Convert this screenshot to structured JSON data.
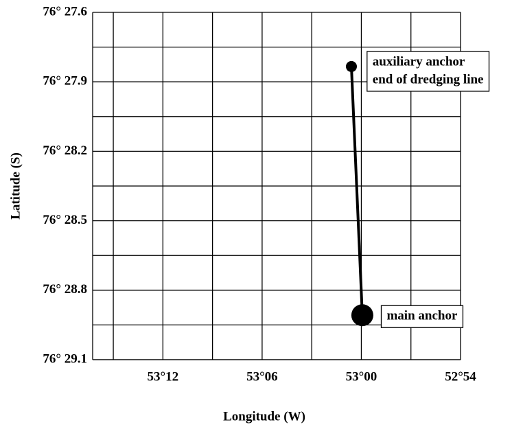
{
  "chart_data": {
    "type": "line",
    "xlabel": "Longitude (W)",
    "ylabel": "Latitude (S)",
    "x": [
      53.01,
      52.999
    ],
    "values": [
      76.4639,
      76.4818
    ],
    "marker_sizes": [
      8,
      16
    ],
    "color": "#000000",
    "annotations": [
      [
        "auxiliary anchor",
        "end of dredging line"
      ],
      [
        "main anchor"
      ]
    ],
    "xlim": [
      53.2708,
      52.9
    ],
    "ylim": [
      76.46,
      76.485
    ],
    "xticks": [
      {
        "value": 53.2,
        "label": "53°12"
      },
      {
        "value": 53.1,
        "label": "53°06"
      },
      {
        "value": 53.0,
        "label": "53°00"
      },
      {
        "value": 52.9,
        "label": "52°54"
      }
    ],
    "yticks": [
      {
        "value": 76.46,
        "label": "76° 27.6"
      },
      {
        "value": 76.465,
        "label": "76° 27.9"
      },
      {
        "value": 76.47,
        "label": "76° 28.2"
      },
      {
        "value": 76.475,
        "label": "76° 28.5"
      },
      {
        "value": 76.48,
        "label": "76° 28.8"
      },
      {
        "value": 76.485,
        "label": "76° 29.1"
      }
    ],
    "x_minor_ticks": [
      53.25,
      53.15,
      53.05,
      52.95
    ],
    "y_minor_ticks": [
      76.4625,
      76.4675,
      76.4725,
      76.4775,
      76.4825
    ],
    "grid": true
  }
}
